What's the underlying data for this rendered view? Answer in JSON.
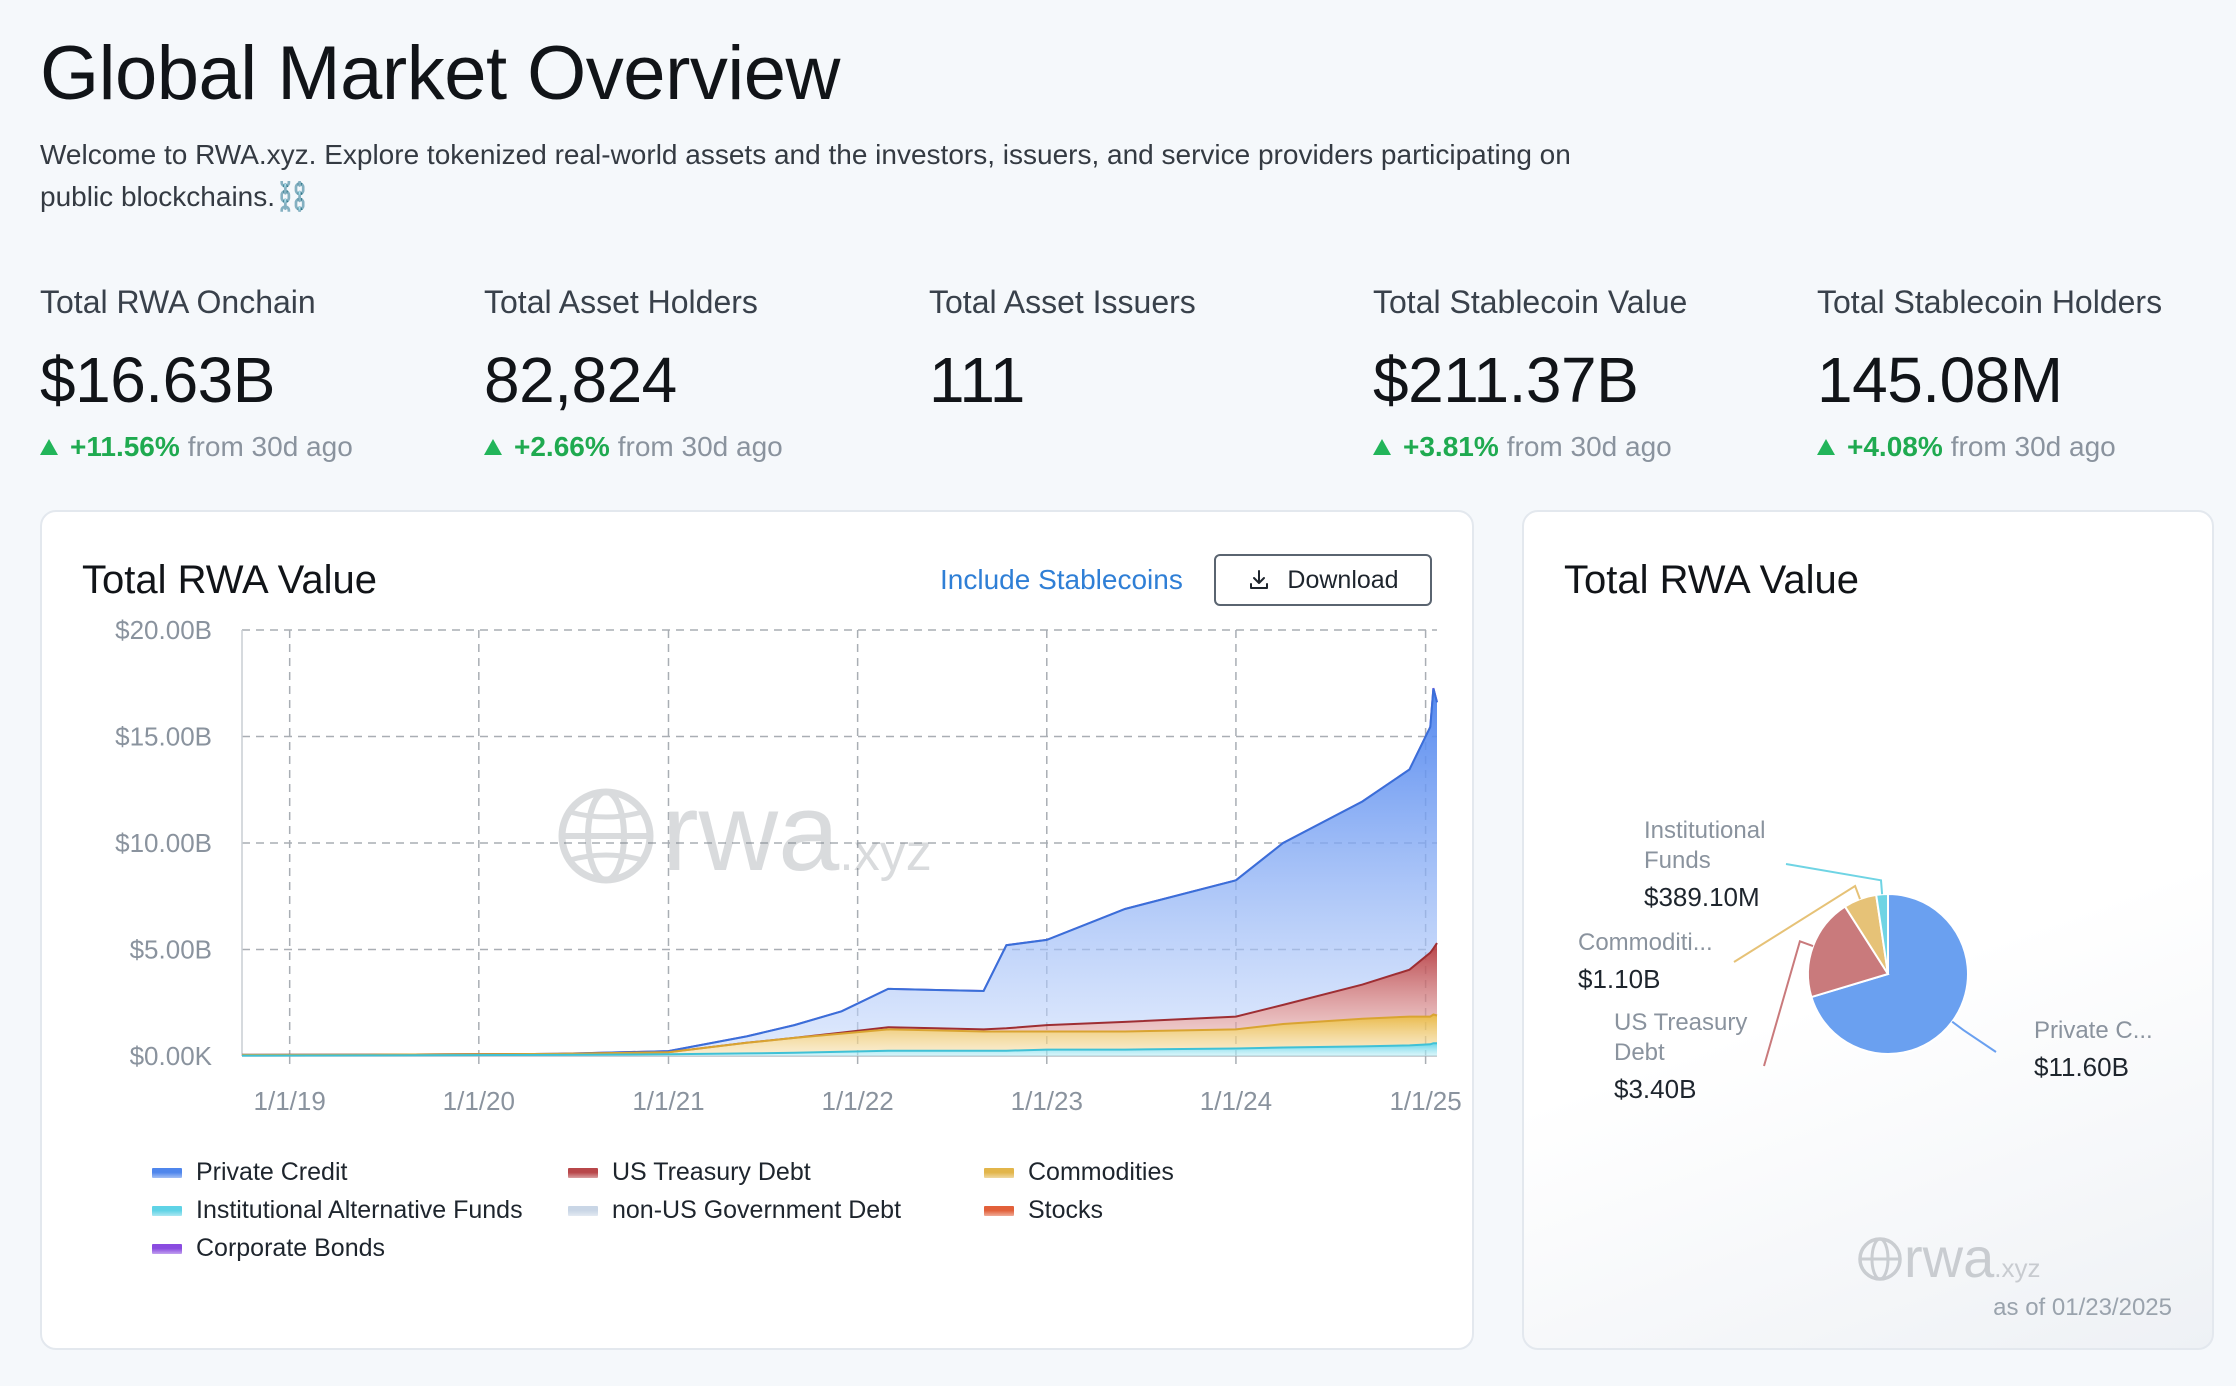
{
  "page": {
    "title": "Global Market Overview",
    "intro": "Welcome to RWA.xyz. Explore tokenized real-world assets and the investors, issuers, and service providers participating on public blockchains.⛓️"
  },
  "stats": [
    {
      "label": "Total RWA Onchain",
      "value": "$16.63B",
      "change": "+11.56%",
      "suffix": "from 30d ago"
    },
    {
      "label": "Total Asset Holders",
      "value": "82,824",
      "change": "+2.66%",
      "suffix": "from 30d ago"
    },
    {
      "label": "Total Asset Issuers",
      "value": "111",
      "change": "",
      "suffix": ""
    },
    {
      "label": "Total Stablecoin Value",
      "value": "$211.37B",
      "change": "+3.81%",
      "suffix": "from 30d ago"
    },
    {
      "label": "Total Stablecoin Holders",
      "value": "145.08M",
      "change": "+4.08%",
      "suffix": "from 30d ago"
    }
  ],
  "area_card": {
    "include_label": "Include Stablecoins",
    "download_label": "Download",
    "watermark": {
      "main": "rwa",
      "suffix": ".xyz"
    }
  },
  "pie_card": {
    "watermark": {
      "main": "rwa",
      "suffix": ".xyz"
    },
    "as_of": "as of 01/23/2025"
  },
  "colors": {
    "private_credit": "#4f86ec",
    "treasury": "#b8474a",
    "commodities": "#e2b54a",
    "inst_funds": "#5fd3e6",
    "non_us_gov": "#c9d6e6",
    "stocks": "#e2603a",
    "corp_bonds": "#8a4be0"
  },
  "chart_data": [
    {
      "type": "area",
      "title": "Total RWA Value",
      "xlabel": "",
      "ylabel": "",
      "ylim": [
        0,
        20
      ],
      "y_unit": "$B",
      "y_ticks": [
        "$0.00K",
        "$5.00B",
        "$10.00B",
        "$15.00B",
        "$20.00B"
      ],
      "x_ticks": [
        "1/1/19",
        "1/1/20",
        "1/1/21",
        "1/1/22",
        "1/1/23",
        "1/1/24",
        "1/1/25"
      ],
      "x_range": [
        "2018-10-01",
        "2025-01-23"
      ],
      "grid": true,
      "legend_position": "bottom",
      "stacked": true,
      "x": [
        "2018-10-01",
        "2019-06-01",
        "2020-06-01",
        "2021-01-01",
        "2021-06-01",
        "2021-09-01",
        "2021-12-01",
        "2022-03-01",
        "2022-06-01",
        "2022-09-01",
        "2022-10-15",
        "2023-01-01",
        "2023-06-01",
        "2024-01-01",
        "2024-04-01",
        "2024-09-01",
        "2024-12-01",
        "2025-01-10",
        "2025-01-16",
        "2025-01-23"
      ],
      "series": [
        {
          "name": "Institutional Alternative Funds",
          "values": [
            0.02,
            0.03,
            0.05,
            0.08,
            0.12,
            0.15,
            0.2,
            0.25,
            0.25,
            0.25,
            0.25,
            0.3,
            0.3,
            0.35,
            0.4,
            0.45,
            0.5,
            0.55,
            0.6,
            0.6
          ]
        },
        {
          "name": "Commodities",
          "values": [
            0.03,
            0.03,
            0.05,
            0.1,
            0.5,
            0.7,
            0.85,
            1.0,
            0.95,
            0.9,
            0.9,
            0.85,
            0.85,
            0.9,
            1.1,
            1.3,
            1.35,
            1.3,
            1.35,
            1.3
          ]
        },
        {
          "name": "US Treasury Debt",
          "values": [
            0,
            0,
            0,
            0,
            0,
            0,
            0.05,
            0.1,
            0.1,
            0.1,
            0.15,
            0.3,
            0.45,
            0.6,
            0.9,
            1.6,
            2.2,
            3.0,
            3.1,
            3.4
          ]
        },
        {
          "name": "Private Credit",
          "values": [
            0,
            0,
            0,
            0.05,
            0.3,
            0.6,
            1.0,
            1.8,
            1.8,
            1.8,
            3.9,
            4.0,
            5.3,
            6.4,
            7.6,
            8.6,
            9.4,
            10.6,
            12.2,
            11.3
          ]
        },
        {
          "name": "non-US Government Debt",
          "values": [
            0,
            0,
            0,
            0,
            0,
            0,
            0,
            0,
            0,
            0,
            0,
            0,
            0,
            0,
            0,
            0,
            0,
            0,
            0,
            0
          ]
        },
        {
          "name": "Stocks",
          "values": [
            0,
            0,
            0,
            0,
            0,
            0,
            0,
            0,
            0,
            0,
            0,
            0,
            0,
            0,
            0,
            0,
            0,
            0,
            0,
            0
          ]
        },
        {
          "name": "Corporate Bonds",
          "values": [
            0,
            0,
            0,
            0,
            0,
            0,
            0,
            0,
            0,
            0,
            0,
            0,
            0,
            0,
            0,
            0,
            0,
            0,
            0.02,
            0.02
          ]
        }
      ],
      "legend": [
        {
          "name": "Private Credit",
          "color": "#4f86ec"
        },
        {
          "name": "US Treasury Debt",
          "color": "#b8474a"
        },
        {
          "name": "Commodities",
          "color": "#e2b54a"
        },
        {
          "name": "Institutional Alternative Funds",
          "color": "#5fd3e6"
        },
        {
          "name": "non-US Government Debt",
          "color": "#c9d6e6"
        },
        {
          "name": "Stocks",
          "color": "#e2603a"
        },
        {
          "name": "Corporate Bonds",
          "color": "#8a4be0"
        }
      ]
    },
    {
      "type": "pie",
      "title": "Total RWA Value",
      "slices": [
        {
          "label": "Private C...",
          "value": 11.6,
          "value_label": "$11.60B",
          "color": "#6aa0f0"
        },
        {
          "label": "US Treasury Debt",
          "value": 3.4,
          "value_label": "$3.40B",
          "color": "#c97a7c"
        },
        {
          "label": "Commoditi...",
          "value": 1.1,
          "value_label": "$1.10B",
          "color": "#e6c277"
        },
        {
          "label": "Institutional Funds",
          "value": 0.3891,
          "value_label": "$389.10M",
          "color": "#6fd4e4"
        }
      ]
    }
  ]
}
